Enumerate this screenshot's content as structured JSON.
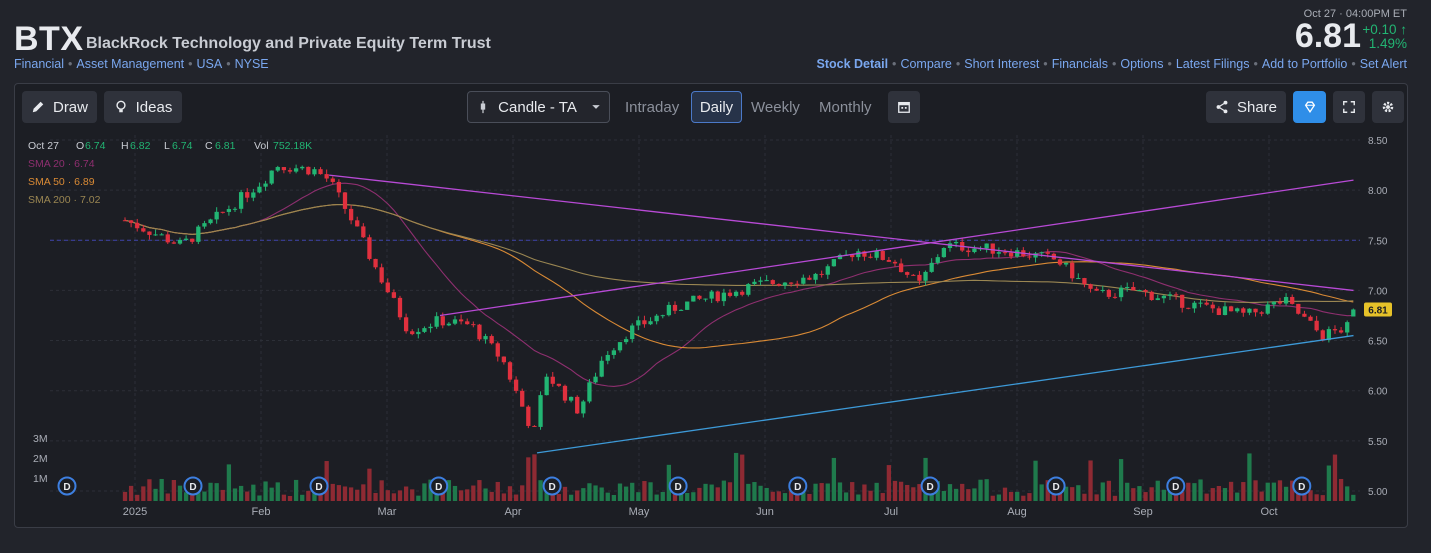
{
  "header": {
    "ticker": "BTX",
    "company": "BlackRock Technology and Private Equity Term Trust",
    "tags": [
      "Financial",
      "Asset Management",
      "USA",
      "NYSE"
    ],
    "as_of": "Oct 27 · 04:00PM ET",
    "price": "6.81",
    "change_abs": "+0.10",
    "change_pct": "1.49%",
    "links": [
      "Stock Detail",
      "Compare",
      "Short Interest",
      "Financials",
      "Options",
      "Latest Filings",
      "Add to Portfolio",
      "Set Alert"
    ]
  },
  "toolbar": {
    "draw_label": "Draw",
    "ideas_label": "Ideas",
    "chart_type": "Candle - TA",
    "tabs": [
      "Intraday",
      "Daily",
      "Weekly",
      "Monthly"
    ],
    "active_tab": "Daily",
    "share_label": "Share",
    "icons": [
      "pencil-icon",
      "bulb-icon",
      "candle-icon",
      "chevron-down-icon",
      "calendar-icon",
      "share-icon",
      "diamond-icon",
      "fullscreen-icon",
      "gear-icon"
    ]
  },
  "ohlc": {
    "date": "Oct 27",
    "o_label": "O",
    "o": "6.74",
    "h_label": "H",
    "h": "6.82",
    "l_label": "L",
    "l": "6.74",
    "c_label": "C",
    "c": "6.81",
    "vol_label": "Vol",
    "vol": "752.18K"
  },
  "colors": {
    "up": "#22b573",
    "down": "#e0303e",
    "sma20": "#8e2f6f",
    "sma50": "#d98a35",
    "sma200": "#9a8652",
    "trend_upper": "#b84ad6",
    "trend_lower": "#3d9ad8",
    "resistance": "#3a3f9a",
    "accent": "#2f8ee8"
  },
  "chart_data": {
    "type": "candlestick",
    "y_ticks": [
      "8.50",
      "8.00",
      "7.50",
      "7.00",
      "6.50",
      "6.00",
      "5.50",
      "5.00"
    ],
    "ylim": [
      4.9,
      8.55
    ],
    "x_ticks": [
      "2025",
      "Feb",
      "Mar",
      "Apr",
      "May",
      "Jun",
      "Jul",
      "Aug",
      "Sep",
      "Oct"
    ],
    "volume_ticks": [
      "3M",
      "2M",
      "1M"
    ],
    "last_price_label": "6.81",
    "horizontal_line": 7.5,
    "indicators": [
      {
        "name": "SMA 20",
        "value": "6.74"
      },
      {
        "name": "SMA 50",
        "value": "6.89"
      },
      {
        "name": "SMA 200",
        "value": "7.02"
      }
    ],
    "anchors": [
      {
        "m": 0,
        "v": 7.7
      },
      {
        "m": 0.45,
        "v": 7.45
      },
      {
        "m": 0.85,
        "v": 7.85
      },
      {
        "m": 1.1,
        "v": 8.1
      },
      {
        "m": 1.2,
        "v": 8.25
      },
      {
        "m": 1.5,
        "v": 8.2
      },
      {
        "m": 1.62,
        "v": 8.1
      },
      {
        "m": 1.8,
        "v": 7.7
      },
      {
        "m": 2.0,
        "v": 7.2
      },
      {
        "m": 2.25,
        "v": 6.6
      },
      {
        "m": 2.5,
        "v": 6.7
      },
      {
        "m": 2.75,
        "v": 6.65
      },
      {
        "m": 3.0,
        "v": 6.3
      },
      {
        "m": 3.2,
        "v": 5.7
      },
      {
        "m": 3.27,
        "v": 5.55
      },
      {
        "m": 3.32,
        "v": 6.2
      },
      {
        "m": 3.6,
        "v": 5.8
      },
      {
        "m": 3.8,
        "v": 6.35
      },
      {
        "m": 4.0,
        "v": 6.6
      },
      {
        "m": 4.4,
        "v": 6.85
      },
      {
        "m": 5.0,
        "v": 7.05
      },
      {
        "m": 5.5,
        "v": 7.15
      },
      {
        "m": 5.8,
        "v": 7.4
      },
      {
        "m": 6.1,
        "v": 7.3
      },
      {
        "m": 6.3,
        "v": 7.05
      },
      {
        "m": 6.5,
        "v": 7.45
      },
      {
        "m": 7.0,
        "v": 7.4
      },
      {
        "m": 7.4,
        "v": 7.3
      },
      {
        "m": 7.7,
        "v": 6.95
      },
      {
        "m": 8.0,
        "v": 7.0
      },
      {
        "m": 8.5,
        "v": 6.85
      },
      {
        "m": 8.9,
        "v": 6.75
      },
      {
        "m": 9.2,
        "v": 6.9
      },
      {
        "m": 9.5,
        "v": 6.55
      },
      {
        "m": 9.75,
        "v": 6.65
      }
    ],
    "trendlines": [
      {
        "name": "upper-resistance",
        "from": {
          "m": 1.62,
          "v": 8.15
        },
        "to": {
          "m": 9.75,
          "v": 7.0
        }
      },
      {
        "name": "upper-channel",
        "from": {
          "m": 2.5,
          "v": 6.75
        },
        "to": {
          "m": 9.75,
          "v": 8.1
        }
      },
      {
        "name": "lower-support",
        "from": {
          "m": 3.27,
          "v": 5.38
        },
        "to": {
          "m": 9.75,
          "v": 6.55
        }
      }
    ],
    "dividend_marker": "D",
    "dividend_months": [
      0.0,
      1.0,
      2.0,
      2.95,
      3.85,
      4.85,
      5.8,
      6.85,
      7.85,
      8.8,
      9.8
    ]
  }
}
